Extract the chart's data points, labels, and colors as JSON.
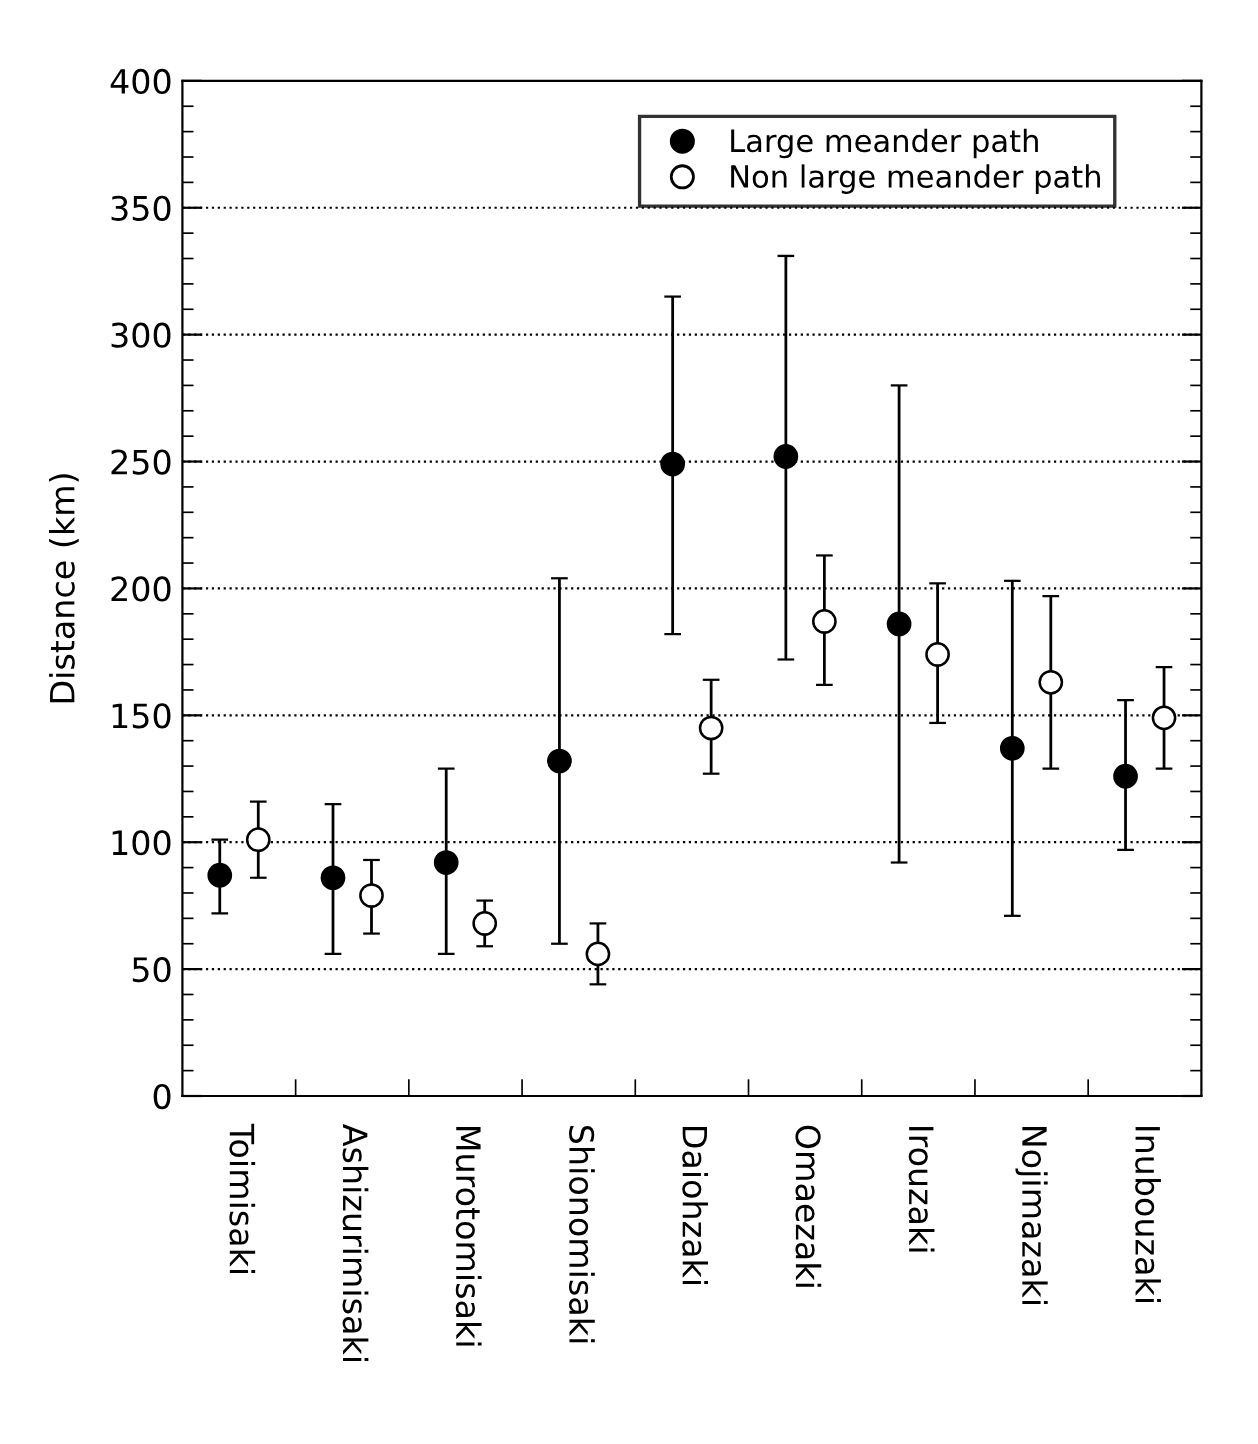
{
  "chart_data": {
    "type": "scatter",
    "ylabel": "Distance (km)",
    "categories": [
      "Toimisaki",
      "Ashizurimisaki",
      "Murotomisaki",
      "Shionomisaki",
      "Daiohzaki",
      "Omaezaki",
      "Irouzaki",
      "Nojimazaki",
      "Inubouzaki"
    ],
    "series": [
      {
        "name": "Large meander path",
        "color": "#000000",
        "marker": "circle",
        "values": [
          87,
          86,
          92,
          132,
          249,
          252,
          186,
          137,
          126
        ],
        "errors": [
          [
            72,
            101
          ],
          [
            56,
            115
          ],
          [
            56,
            129
          ],
          [
            60,
            204
          ],
          [
            182,
            315
          ],
          [
            172,
            331
          ],
          [
            92,
            280
          ],
          [
            71,
            203
          ],
          [
            97,
            156
          ]
        ]
      },
      {
        "name": "Non large meander path",
        "color": "#ffffff",
        "marker": "circle",
        "values": [
          101,
          79,
          68,
          56,
          145,
          187,
          174,
          163,
          149
        ],
        "errors": [
          [
            86,
            116
          ],
          [
            64,
            93
          ],
          [
            59,
            77
          ],
          [
            44,
            68
          ],
          [
            127,
            164
          ],
          [
            162,
            213
          ],
          [
            147,
            202
          ],
          [
            129,
            197
          ],
          [
            129,
            169
          ]
        ]
      }
    ],
    "ylim": [
      0,
      400
    ],
    "yticks": [
      0,
      50,
      100,
      150,
      200,
      250,
      300,
      350,
      400
    ],
    "grid": "y",
    "legend": "top right"
  }
}
